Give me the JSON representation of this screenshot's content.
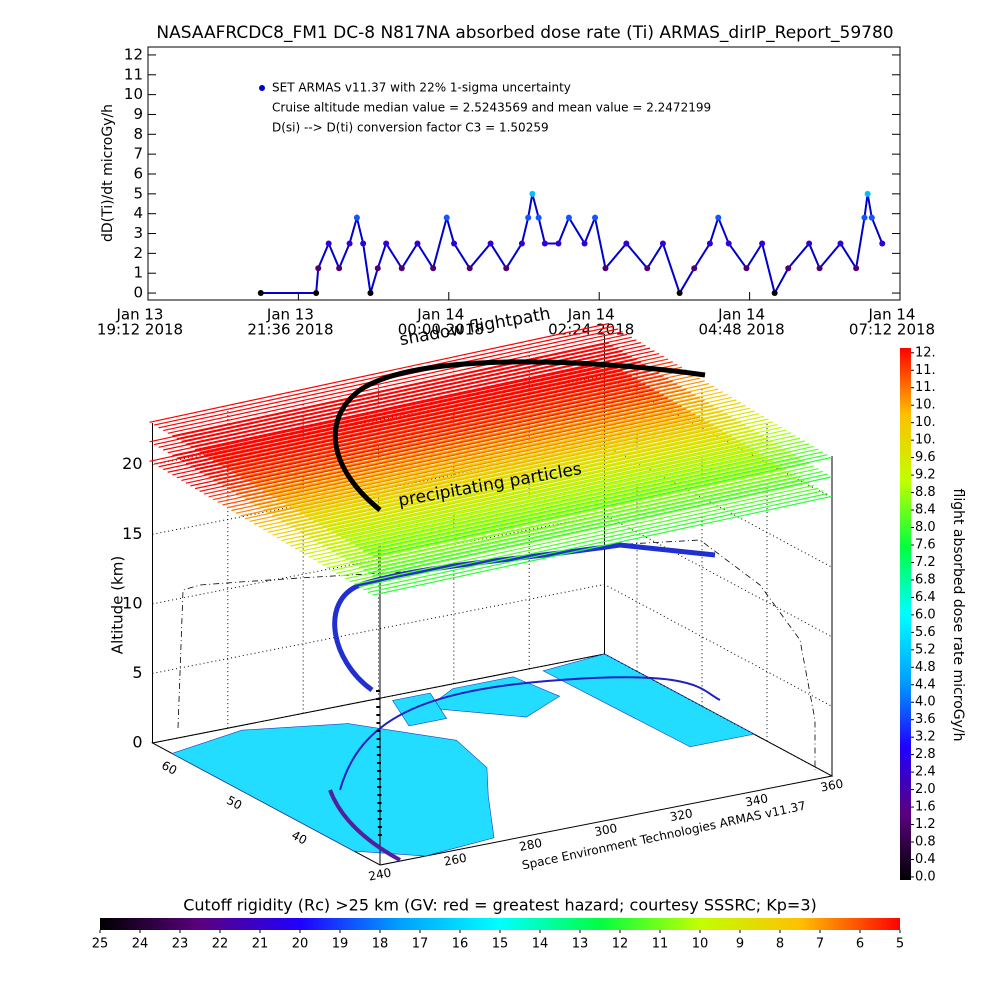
{
  "chart_data": [
    {
      "type": "line",
      "title": "NASAAFRCDC8_FM1 DC-8   N817NA absorbed dose rate (Ti) ARMAS_dirIP_Report_59780",
      "y_label": "dD(Ti)/dt microGy/h",
      "annotations": [
        "Cruise altitude median value = 2.5243569 and mean value = 2.2472199",
        "D(si) --> D(ti) conversion factor C3 = 1.50259"
      ],
      "x": [
        "2018-01-13 21:00",
        "2018-01-13 21:53",
        "2018-01-13 21:55",
        "2018-01-13 22:05",
        "2018-01-13 22:15",
        "2018-01-13 22:25",
        "2018-01-13 22:32",
        "2018-01-13 22:38",
        "2018-01-13 22:45",
        "2018-01-13 22:52",
        "2018-01-13 23:00",
        "2018-01-13 23:15",
        "2018-01-13 23:30",
        "2018-01-13 23:45",
        "2018-01-13 23:58",
        "2018-01-14 00:05",
        "2018-01-14 00:20",
        "2018-01-14 00:40",
        "2018-01-14 00:55",
        "2018-01-14 01:10",
        "2018-01-14 01:16",
        "2018-01-14 01:20",
        "2018-01-14 01:26",
        "2018-01-14 01:32",
        "2018-01-14 01:45",
        "2018-01-14 01:55",
        "2018-01-14 02:10",
        "2018-01-14 02:20",
        "2018-01-14 02:30",
        "2018-01-14 02:50",
        "2018-01-14 03:10",
        "2018-01-14 03:25",
        "2018-01-14 03:41",
        "2018-01-14 03:55",
        "2018-01-14 04:10",
        "2018-01-14 04:18",
        "2018-01-14 04:28",
        "2018-01-14 04:45",
        "2018-01-14 05:00",
        "2018-01-14 05:12",
        "2018-01-14 05:25",
        "2018-01-14 05:45",
        "2018-01-14 05:55",
        "2018-01-14 06:15",
        "2018-01-14 06:30",
        "2018-01-14 06:38",
        "2018-01-14 06:41",
        "2018-01-14 06:45",
        "2018-01-14 06:55"
      ],
      "series": [
        {
          "name": "SET ARMAS v11.37 with 22% 1-sigma uncertainty",
          "color": "#0000cc",
          "values": [
            0,
            0,
            1.25,
            2.5,
            1.25,
            2.5,
            3.8,
            2.5,
            0,
            1.25,
            2.5,
            1.25,
            2.5,
            1.25,
            3.8,
            2.5,
            1.25,
            2.5,
            1.25,
            2.5,
            3.8,
            5,
            3.8,
            2.5,
            2.5,
            3.8,
            2.5,
            3.8,
            1.25,
            2.5,
            1.25,
            2.5,
            0,
            1.25,
            2.5,
            3.8,
            2.5,
            1.25,
            2.5,
            0,
            1.25,
            2.5,
            1.25,
            2.5,
            1.25,
            3.8,
            5,
            3.8,
            2.5
          ]
        }
      ],
      "xlim": [
        "2018-01-13 19:12",
        "2018-01-14 07:12"
      ],
      "xticks": [
        {
          "value": "2018-01-13 19:12",
          "label": [
            "Jan 13",
            "19:12 2018"
          ]
        },
        {
          "value": "2018-01-13 21:36",
          "label": [
            "Jan 13",
            "21:36 2018"
          ]
        },
        {
          "value": "2018-01-14 00:00",
          "label": [
            "Jan 14",
            "00:00 2018"
          ]
        },
        {
          "value": "2018-01-14 02:24",
          "label": [
            "Jan 14",
            "02:24 2018"
          ]
        },
        {
          "value": "2018-01-14 04:48",
          "label": [
            "Jan 14",
            "04:48 2018"
          ]
        },
        {
          "value": "2018-01-14 07:12",
          "label": [
            "Jan 14",
            "07:12 2018"
          ]
        }
      ],
      "ylim": [
        -0.35,
        12.4
      ],
      "yticks": [
        0,
        1,
        2,
        3,
        4,
        5,
        6,
        7,
        8,
        9,
        10,
        11,
        12
      ]
    },
    {
      "type": "colorbar_vertical",
      "title": "flight absorbed dose rate microGy/h",
      "colors": [
        "#000000",
        "#5a007f",
        "#2000ff",
        "#00a0ff",
        "#00ffff",
        "#00ff40",
        "#c0ff00",
        "#ffc000",
        "#ff0000"
      ],
      "ylim": [
        -0.07,
        12.11
      ],
      "yticks": [
        {
          "value": 0,
          "label": "0.0"
        },
        {
          "value": 0.4,
          "label": "0.4"
        },
        {
          "value": 0.8,
          "label": "0.8"
        },
        {
          "value": 1.2,
          "label": "1.2"
        },
        {
          "value": 1.6,
          "label": "1.6"
        },
        {
          "value": 2,
          "label": "2.0"
        },
        {
          "value": 2.4,
          "label": "2.4"
        },
        {
          "value": 2.8,
          "label": "2.8"
        },
        {
          "value": 3.2,
          "label": "3.2"
        },
        {
          "value": 3.6,
          "label": "3.6"
        },
        {
          "value": 4,
          "label": "4.0"
        },
        {
          "value": 4.4,
          "label": "4.4"
        },
        {
          "value": 4.8,
          "label": "4.8"
        },
        {
          "value": 5.2,
          "label": "5.2"
        },
        {
          "value": 5.6,
          "label": "5.6"
        },
        {
          "value": 6,
          "label": "6.0"
        },
        {
          "value": 6.4,
          "label": "6.4"
        },
        {
          "value": 6.8,
          "label": "6.8"
        },
        {
          "value": 7.2,
          "label": "7.2"
        },
        {
          "value": 7.6,
          "label": "7.6"
        },
        {
          "value": 8,
          "label": "8.0"
        },
        {
          "value": 8.4,
          "label": "8.4"
        },
        {
          "value": 8.8,
          "label": "8.8"
        },
        {
          "value": 9.2,
          "label": "9.2"
        },
        {
          "value": 9.6,
          "label": "9.6"
        },
        {
          "value": 10,
          "label": "10."
        },
        {
          "value": 10.4,
          "label": "10."
        },
        {
          "value": 10.8,
          "label": "10."
        },
        {
          "value": 11.2,
          "label": "11."
        },
        {
          "value": 11.6,
          "label": "11."
        },
        {
          "value": 12,
          "label": "12."
        }
      ]
    },
    {
      "type": "colorbar_horizontal",
      "title": "Cutoff rigidity (Rc) >25 km (GV: red = greatest hazard; courtesy SSSRC; Kp=3)",
      "colors": [
        "#000000",
        "#5a007f",
        "#2000ff",
        "#00a0ff",
        "#00ffff",
        "#00ff40",
        "#c0ff00",
        "#ffc000",
        "#ff0000"
      ],
      "xlim": [
        25,
        5
      ],
      "xticks": [
        25,
        24,
        23,
        22,
        21,
        20,
        19,
        18,
        17,
        16,
        15,
        14,
        13,
        12,
        11,
        10,
        9,
        8,
        7,
        6,
        5
      ]
    },
    {
      "type": "surface3d",
      "z_label": "Altitude (km)",
      "annotations": [
        "shadow flightpath",
        "precipitating particles"
      ],
      "credit": "Space Environment Technologies ARMAS v11.37",
      "xlim": [
        240,
        360
      ],
      "ylim": [
        30,
        65
      ],
      "zlim": [
        0,
        23
      ],
      "xticks": [
        240,
        260,
        280,
        300,
        320,
        340,
        360
      ],
      "yticks": [
        40,
        50,
        60
      ],
      "zticks": [
        0,
        5,
        10,
        15,
        20
      ]
    }
  ]
}
